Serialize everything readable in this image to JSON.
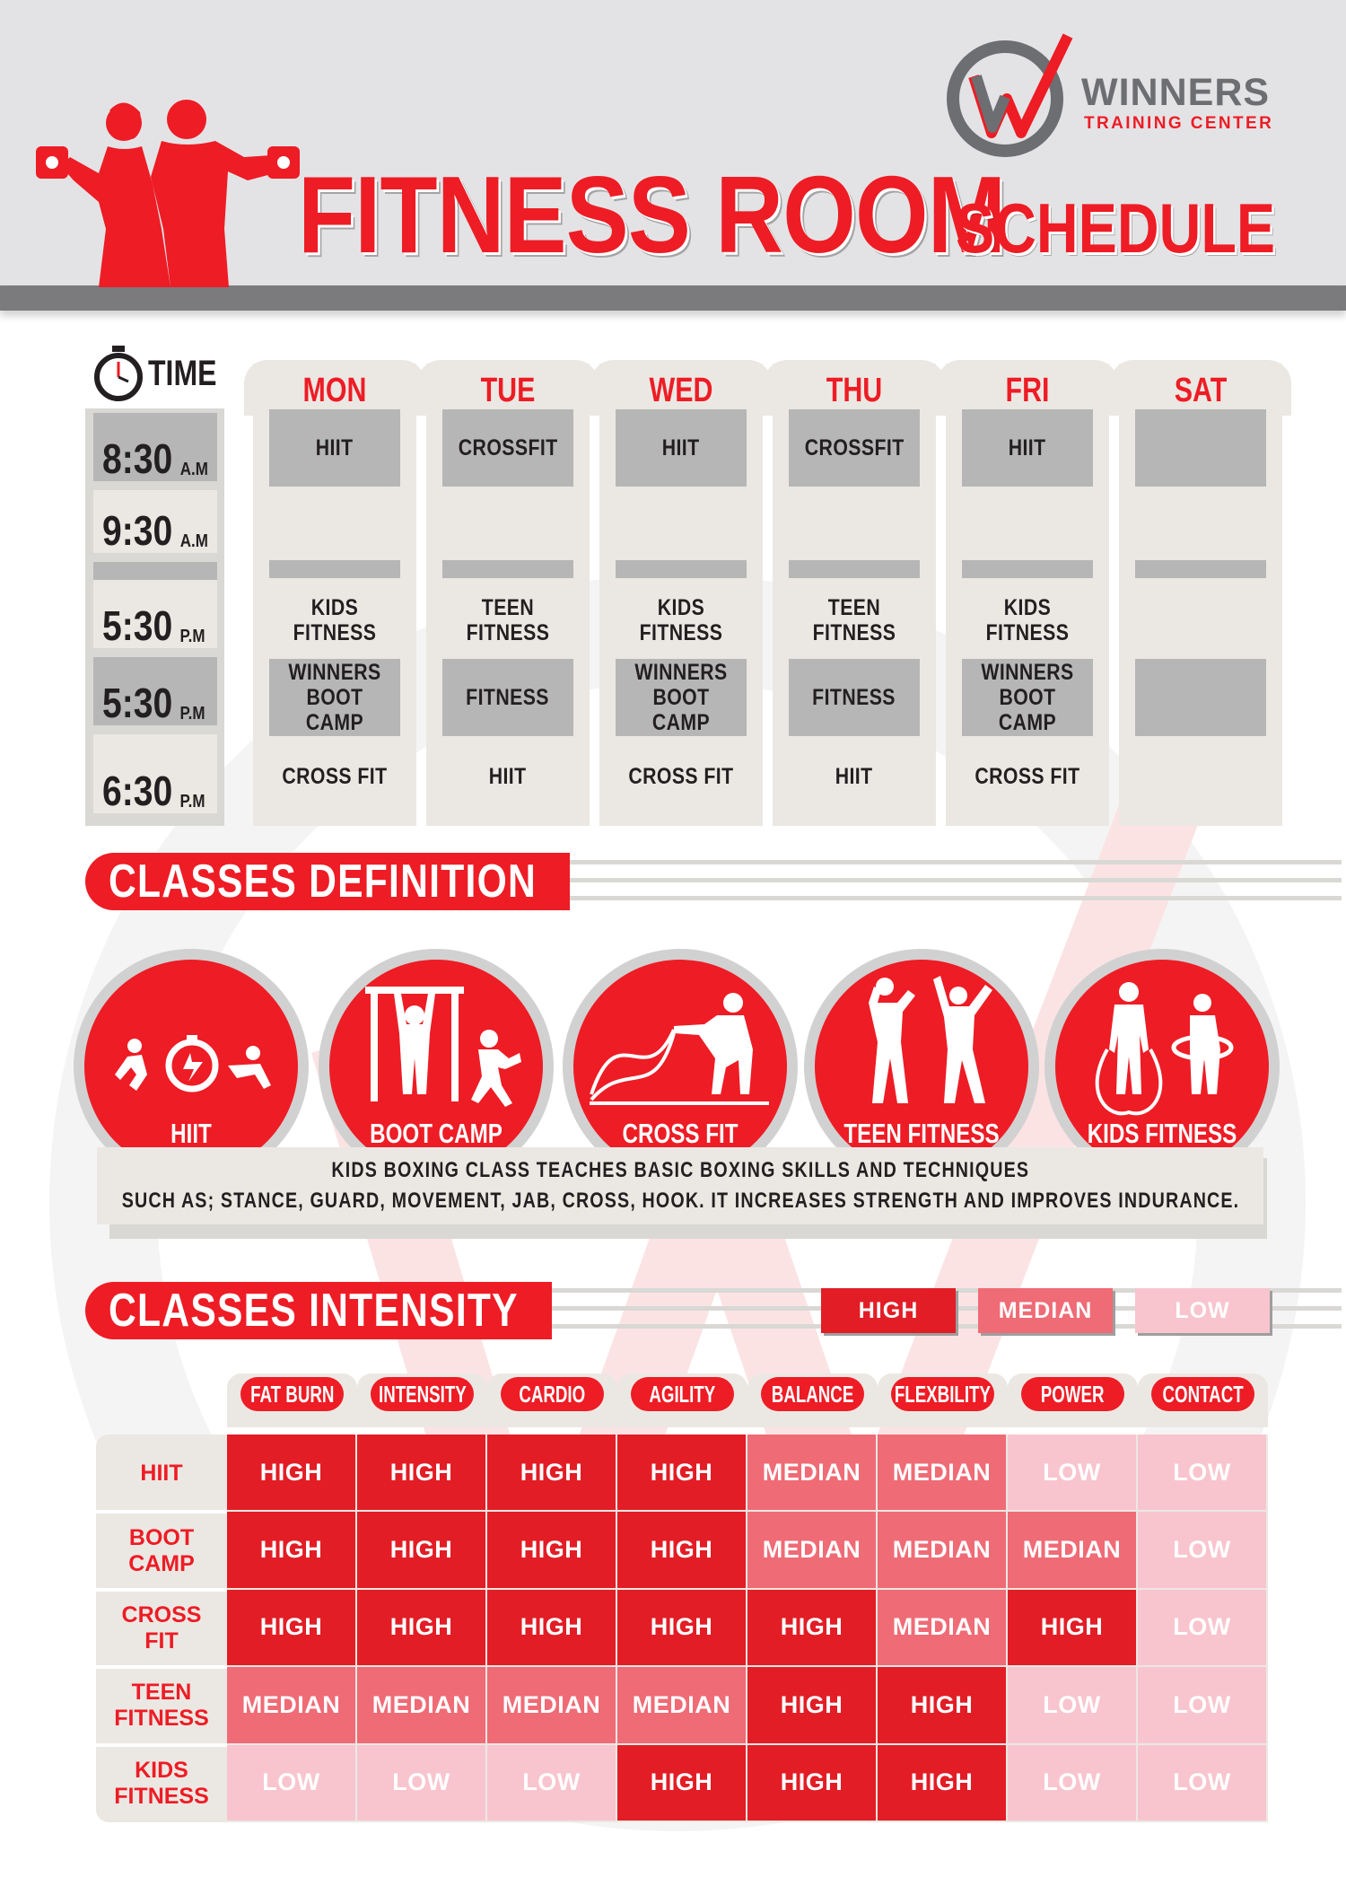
{
  "colors": {
    "accent": "#ee1c25",
    "grey": "#6d6e71",
    "high": "#e21d25",
    "median": "#ef6b76",
    "low": "#f8c5ce"
  },
  "header": {
    "title_main": "FITNESS ROOM",
    "title_sub": "SCHEDULE",
    "logo_brand": "WINNERS",
    "logo_sub": "TRAINING CENTER",
    "logo_icon": "winners-w-check-logo",
    "illustration": "athletes-with-dumbbells"
  },
  "schedule": {
    "time_label": "TIME",
    "time_icon": "stopwatch-icon",
    "times": [
      {
        "time": "8:30",
        "ampm": "A.M"
      },
      {
        "time": "9:30",
        "ampm": "A.M"
      },
      {
        "time": "5:30",
        "ampm": "P.M"
      },
      {
        "time": "5:30",
        "ampm": "P.M"
      },
      {
        "time": "6:30",
        "ampm": "P.M"
      }
    ],
    "days": [
      {
        "name": "MON",
        "slots": [
          "HIIT",
          "",
          "KIDS FITNESS",
          "WINNERS BOOT CAMP",
          "CROSS FIT"
        ]
      },
      {
        "name": "TUE",
        "slots": [
          "CROSSFIT",
          "",
          "TEEN FITNESS",
          "FITNESS",
          "HIIT"
        ]
      },
      {
        "name": "WED",
        "slots": [
          "HIIT",
          "",
          "KIDS FITNESS",
          "WINNERS BOOT CAMP",
          "CROSS FIT"
        ]
      },
      {
        "name": "THU",
        "slots": [
          "CROSSFIT",
          "",
          "TEEN FITNESS",
          "FITNESS",
          "HIIT"
        ]
      },
      {
        "name": "FRI",
        "slots": [
          "HIIT",
          "",
          "KIDS FITNESS",
          "WINNERS BOOT CAMP",
          "CROSS FIT"
        ]
      },
      {
        "name": "SAT",
        "slots": [
          "",
          "",
          "",
          "",
          ""
        ]
      }
    ]
  },
  "definitions": {
    "heading": "CLASSES DEFINITION",
    "classes": [
      {
        "label": "HIIT",
        "icon": "hiit-stopwatch-exercise-icon"
      },
      {
        "label": "BOOT CAMP",
        "icon": "pullup-squat-icon"
      },
      {
        "label": "CROSS FIT",
        "icon": "battle-ropes-icon"
      },
      {
        "label": "TEEN FITNESS",
        "icon": "stretching-people-icon"
      },
      {
        "label": "KIDS FITNESS",
        "icon": "jump-rope-hula-hoop-icon"
      }
    ],
    "text_line1": "KIDS BOXING CLASS TEACHES BASIC BOXING SKILLS AND TECHNIQUES",
    "text_line2": "SUCH AS; STANCE, GUARD, MOVEMENT, JAB, CROSS, HOOK. IT INCREASES STRENGTH AND IMPROVES INDURANCE."
  },
  "intensity": {
    "heading": "CLASSES INTENSITY",
    "legend": {
      "high": "HIGH",
      "median": "MEDIAN",
      "low": "LOW"
    },
    "columns": [
      "FAT BURN",
      "INTENSITY",
      "CARDIO",
      "AGILITY",
      "BALANCE",
      "FLEXBILITY",
      "POWER",
      "CONTACT"
    ],
    "rows": [
      {
        "label": "HIIT",
        "values": [
          "HIGH",
          "HIGH",
          "HIGH",
          "HIGH",
          "MEDIAN",
          "MEDIAN",
          "LOW",
          "LOW"
        ]
      },
      {
        "label": "BOOT CAMP",
        "values": [
          "HIGH",
          "HIGH",
          "HIGH",
          "HIGH",
          "MEDIAN",
          "MEDIAN",
          "MEDIAN",
          "LOW"
        ]
      },
      {
        "label": "CROSS FIT",
        "values": [
          "HIGH",
          "HIGH",
          "HIGH",
          "HIGH",
          "HIGH",
          "MEDIAN",
          "HIGH",
          "LOW"
        ]
      },
      {
        "label": "TEEN FITNESS",
        "values": [
          "MEDIAN",
          "MEDIAN",
          "MEDIAN",
          "MEDIAN",
          "HIGH",
          "HIGH",
          "LOW",
          "LOW"
        ]
      },
      {
        "label": "KIDS FITNESS",
        "values": [
          "LOW",
          "LOW",
          "LOW",
          "HIGH",
          "HIGH",
          "HIGH",
          "LOW",
          "LOW"
        ]
      }
    ]
  }
}
